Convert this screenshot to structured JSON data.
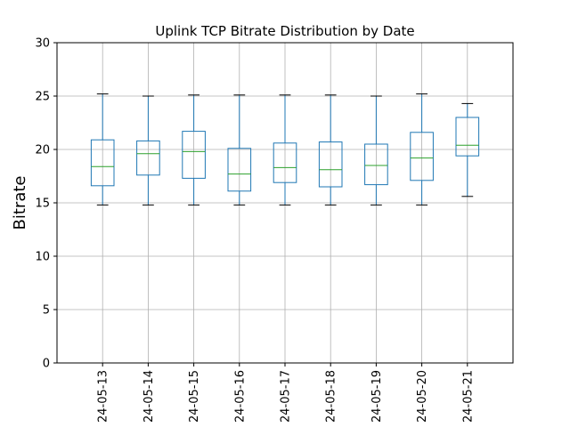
{
  "chart_data": {
    "type": "boxplot",
    "title": "Uplink TCP Bitrate Distribution by Date",
    "xlabel": "",
    "ylabel": "Bitrate",
    "ylim": [
      0,
      30
    ],
    "yticks": [
      0,
      5,
      10,
      15,
      20,
      25,
      30
    ],
    "grid": true,
    "categories": [
      "24-05-13",
      "24-05-14",
      "24-05-15",
      "24-05-16",
      "24-05-17",
      "24-05-18",
      "24-05-19",
      "24-05-20",
      "24-05-21"
    ],
    "boxes": [
      {
        "whislo": 14.8,
        "q1": 16.6,
        "med": 18.4,
        "q3": 20.9,
        "whishi": 25.2
      },
      {
        "whislo": 14.8,
        "q1": 17.6,
        "med": 19.6,
        "q3": 20.8,
        "whishi": 25.0
      },
      {
        "whislo": 14.8,
        "q1": 17.3,
        "med": 19.8,
        "q3": 21.7,
        "whishi": 25.1
      },
      {
        "whislo": 14.8,
        "q1": 16.1,
        "med": 17.7,
        "q3": 20.1,
        "whishi": 25.1
      },
      {
        "whislo": 14.8,
        "q1": 16.9,
        "med": 18.3,
        "q3": 20.6,
        "whishi": 25.1
      },
      {
        "whislo": 14.8,
        "q1": 16.5,
        "med": 18.1,
        "q3": 20.7,
        "whishi": 25.1
      },
      {
        "whislo": 14.8,
        "q1": 16.7,
        "med": 18.5,
        "q3": 20.5,
        "whishi": 25.0
      },
      {
        "whislo": 14.8,
        "q1": 17.1,
        "med": 19.2,
        "q3": 21.6,
        "whishi": 25.2
      },
      {
        "whislo": 15.6,
        "q1": 19.4,
        "med": 20.4,
        "q3": 23.0,
        "whishi": 24.3
      }
    ],
    "colors": {
      "box": "#1f77b4",
      "median": "#2ca02c",
      "whisker_cap": "#000000",
      "grid": "#b0b0b0"
    }
  }
}
